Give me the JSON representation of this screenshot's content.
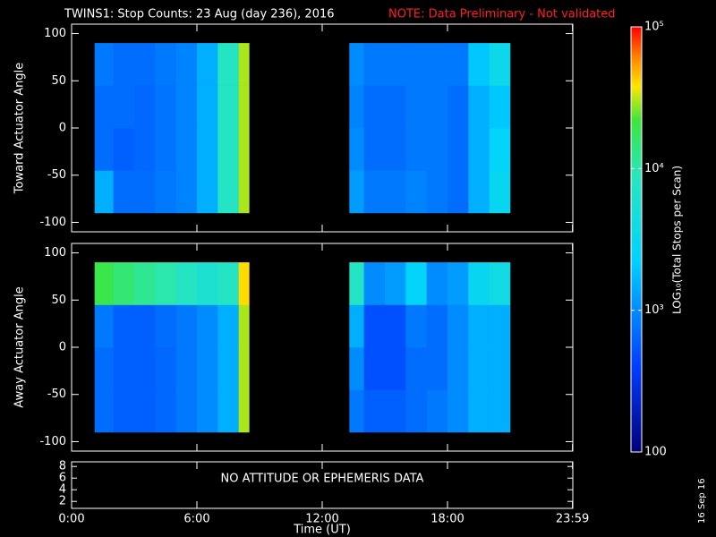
{
  "chart_data": {
    "type": "heatmap",
    "title": "TWINS1: Stop Counts: 23 Aug (day 236), 2016",
    "note": "NOTE: Data Preliminary - Not validated",
    "x_label": "Time (UT)",
    "xlim": [
      0,
      24
    ],
    "xticks": [
      {
        "value": 0,
        "label": "0:00"
      },
      {
        "value": 6,
        "label": "6:00"
      },
      {
        "value": 12,
        "label": "12:00"
      },
      {
        "value": 18,
        "label": "18:00"
      },
      {
        "value": 23.983,
        "label": "23:59"
      }
    ],
    "x_bins": [
      1.1,
      2,
      3,
      4,
      5,
      6,
      7,
      8,
      8.5,
      13.3,
      14,
      15,
      16,
      17,
      18,
      19,
      20,
      21
    ],
    "y_bins": [
      -90,
      -45,
      0,
      45,
      90
    ],
    "panels": [
      {
        "y_label": "Toward Actuator Angle",
        "ylim": [
          -110,
          110
        ],
        "yticks": [
          -100,
          -50,
          0,
          50,
          100
        ],
        "z": [
          [
            1500,
            700,
            700,
            800,
            900,
            1500,
            8000,
            30000,
            null,
            1200,
            800,
            800,
            900,
            800,
            700,
            1500,
            3000
          ],
          [
            700,
            600,
            650,
            750,
            900,
            1500,
            8000,
            30000,
            null,
            1000,
            700,
            700,
            800,
            800,
            700,
            1500,
            2500
          ],
          [
            700,
            700,
            650,
            750,
            900,
            1500,
            8000,
            30000,
            null,
            900,
            700,
            700,
            800,
            800,
            700,
            1500,
            2000
          ],
          [
            800,
            700,
            700,
            800,
            900,
            1500,
            8000,
            30000,
            null,
            1000,
            800,
            800,
            800,
            800,
            800,
            2000,
            3500
          ]
        ]
      },
      {
        "y_label": "Away Actuator Angle",
        "ylim": [
          -110,
          110
        ],
        "yticks": [
          -100,
          -50,
          0,
          50,
          100
        ],
        "z": [
          [
            700,
            600,
            600,
            650,
            800,
            1000,
            1500,
            30000,
            null,
            800,
            600,
            600,
            700,
            800,
            1000,
            1500,
            1500
          ],
          [
            700,
            600,
            600,
            650,
            800,
            1000,
            1500,
            30000,
            null,
            1000,
            500,
            500,
            700,
            700,
            1000,
            1500,
            1500
          ],
          [
            800,
            600,
            600,
            700,
            800,
            1000,
            1500,
            30000,
            null,
            1500,
            500,
            500,
            800,
            700,
            1000,
            1500,
            1500
          ],
          [
            20000,
            15000,
            12000,
            10000,
            8000,
            6000,
            8000,
            40000,
            null,
            8000,
            1000,
            1200,
            2500,
            1000,
            1200,
            3000,
            4000
          ]
        ]
      }
    ],
    "info_panel": {
      "text": "NO ATTITUDE OR EPHEMERIS DATA",
      "ylim": [
        0.8,
        8.8
      ],
      "yticks": [
        2,
        4,
        6,
        8
      ]
    },
    "colorbar": {
      "label": "LOG₁₀(Total Stops per Scan)",
      "zlim": [
        100,
        100000
      ],
      "log": true,
      "ticks": [
        {
          "value": 100,
          "label": "100"
        },
        {
          "value": 1000,
          "label": "10³"
        },
        {
          "value": 10000,
          "label": "10⁴"
        },
        {
          "value": 100000,
          "label": "10⁵"
        }
      ]
    },
    "date_stamp": "16 Sep 16"
  }
}
